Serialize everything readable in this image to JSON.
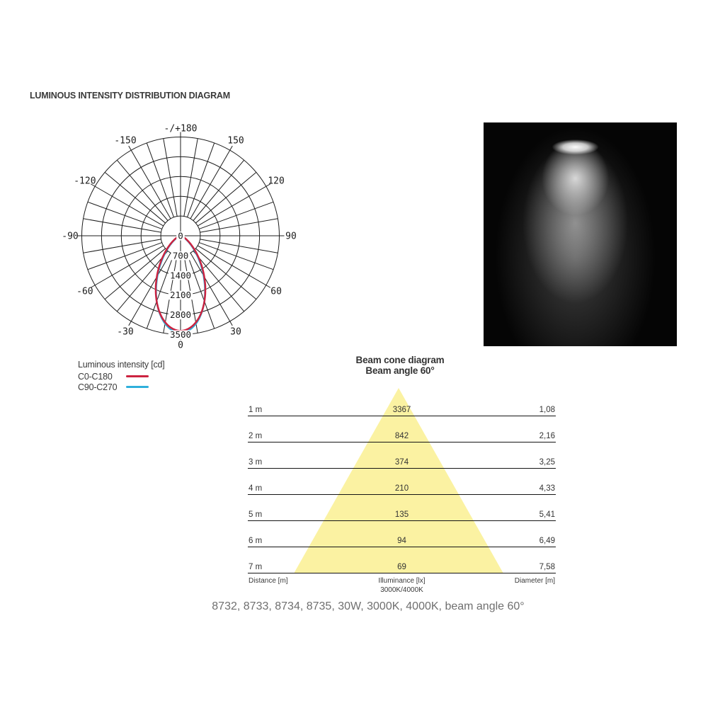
{
  "page": {
    "title": "LUMINOUS INTENSITY DISTRIBUTION DIAGRAM",
    "caption": "8732, 8733, 8734, 8735, 30W, 3000K, 4000K, beam angle 60°"
  },
  "legend": {
    "title": "Luminous intensity [cd]",
    "items": [
      {
        "label": "C0-C180",
        "color": "#cc2340"
      },
      {
        "label": "C90-C270",
        "color": "#2fafdb"
      }
    ]
  },
  "beam_photo": {
    "description": "spotlight beam cone on black background"
  },
  "colors": {
    "grid": "#1d1d1d",
    "cone_fill": "#fbf2a2",
    "text_dark": "#333333",
    "caption_gray": "#6f6f6f"
  },
  "chart_data": [
    {
      "type": "polar",
      "name": "luminous-intensity-distribution",
      "unit": "cd",
      "ring_values_cd": [
        700,
        1400,
        2100,
        2800,
        3500
      ],
      "ring_labels": [
        "0",
        "700",
        "1400",
        "2100",
        "2800",
        "3500"
      ],
      "angle_step_deg": 10,
      "major_angle_step_deg": 30,
      "angle_labels": [
        {
          "angle": 180,
          "text": "-/+180"
        },
        {
          "angle": -150,
          "text": "-150"
        },
        {
          "angle": 150,
          "text": "150"
        },
        {
          "angle": -120,
          "text": "-120"
        },
        {
          "angle": 120,
          "text": "120"
        },
        {
          "angle": -90,
          "text": "-90"
        },
        {
          "angle": 90,
          "text": "90"
        },
        {
          "angle": -60,
          "text": "-60"
        },
        {
          "angle": 60,
          "text": "60"
        },
        {
          "angle": -30,
          "text": "-30"
        },
        {
          "angle": 30,
          "text": "30"
        },
        {
          "angle": 0,
          "text": "0"
        }
      ],
      "series": [
        {
          "name": "C90-C270",
          "color": "#2fafdb",
          "peak_cd": 3430,
          "beam_angle_deg": 58
        },
        {
          "name": "C0-C180",
          "color": "#cc2340",
          "peak_cd": 3367,
          "beam_angle_deg": 60
        }
      ]
    },
    {
      "type": "table",
      "name": "beam-cone-diagram",
      "title": "Beam cone diagram",
      "subtitle": "Beam angle 60°",
      "columns": [
        "Distance [m]",
        "Illuminance [lx]",
        "Diameter [m]"
      ],
      "column_subline": "3000K/4000K",
      "rows": [
        [
          "1 m",
          "3367",
          "1,08"
        ],
        [
          "2 m",
          "842",
          "2,16"
        ],
        [
          "3 m",
          "374",
          "3,25"
        ],
        [
          "4 m",
          "210",
          "4,33"
        ],
        [
          "5 m",
          "135",
          "5,41"
        ],
        [
          "6 m",
          "94",
          "6,49"
        ],
        [
          "7 m",
          "69",
          "7,58"
        ]
      ]
    }
  ]
}
